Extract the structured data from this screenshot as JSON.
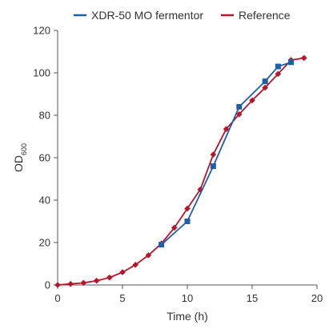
{
  "chart_data": {
    "type": "line",
    "title": "",
    "xlabel": "Time (h)",
    "ylabel": "OD",
    "ylabel_subscript": "600",
    "xlim": [
      0,
      20
    ],
    "ylim": [
      0,
      120
    ],
    "xticks": [
      0,
      5,
      10,
      15,
      20
    ],
    "yticks": [
      0,
      20,
      40,
      60,
      80,
      100,
      120
    ],
    "grid": false,
    "legend_position": "top",
    "series": [
      {
        "name": "XDR-50 MO fermentor",
        "color": "#1f5fa8",
        "marker": "square",
        "x": [
          8,
          10,
          12,
          14,
          16,
          17,
          18
        ],
        "y": [
          19,
          30,
          56,
          84,
          96,
          103,
          105
        ]
      },
      {
        "name": "Reference",
        "color": "#b5162b",
        "marker": "diamond",
        "x": [
          0,
          1,
          2,
          3,
          4,
          5,
          6,
          7,
          8,
          9,
          10,
          11,
          12,
          13,
          14,
          15,
          16,
          17,
          18,
          19
        ],
        "y": [
          0,
          0.5,
          1,
          2,
          3.5,
          6,
          9.5,
          14,
          19.5,
          27,
          36,
          45,
          61.5,
          73.5,
          80.5,
          87,
          93,
          99.5,
          106,
          107
        ]
      }
    ]
  }
}
